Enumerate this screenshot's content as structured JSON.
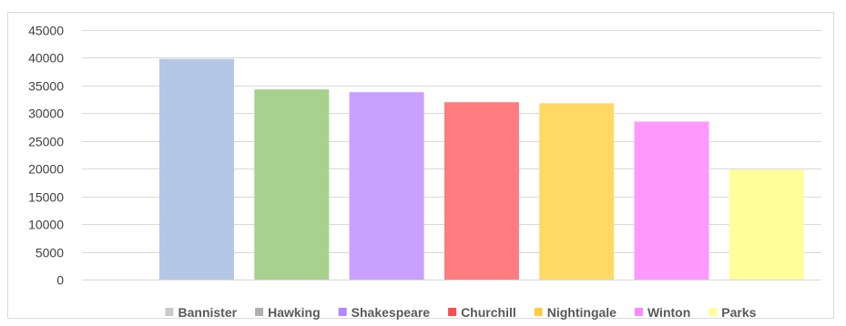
{
  "chart_data": {
    "type": "bar",
    "categories": [
      "Bannister",
      "Hawking",
      "Shakespeare",
      "Churchill",
      "Nightingale",
      "Winton",
      "Parks"
    ],
    "values": [
      39800,
      34300,
      33800,
      32000,
      31800,
      28500,
      19800
    ],
    "colors": [
      "#b4c7e7",
      "#a9d18e",
      "#c9a0ff",
      "#ff7c80",
      "#ffd966",
      "#ff99ff",
      "#ffff99"
    ],
    "legend_colors": [
      "#c9c9c9",
      "#b0b0b0",
      "#b088ff",
      "#ff4d4d",
      "#ffcc44",
      "#ff88ff",
      "#ffff99"
    ],
    "ylim": [
      0,
      45000
    ],
    "yticks": [
      "0",
      "5000",
      "10000",
      "15000",
      "20000",
      "25000",
      "30000",
      "35000",
      "40000",
      "45000"
    ],
    "legend_position": "bottom",
    "grid": true,
    "title": "",
    "xlabel": "",
    "ylabel": ""
  }
}
